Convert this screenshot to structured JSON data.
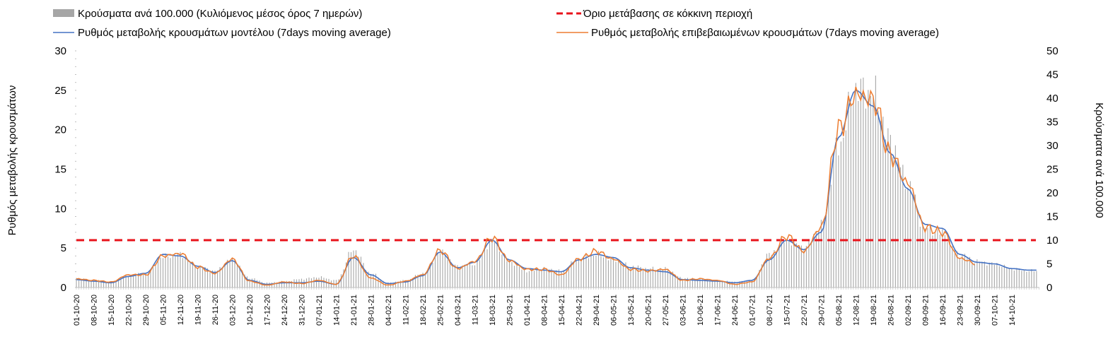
{
  "chart_data": {
    "type": "bar+line",
    "title": "",
    "y_left": {
      "label": "Ρυθμός μεταβολής κρουσμάτων",
      "range": [
        0,
        30
      ],
      "ticks": [
        0,
        5,
        10,
        15,
        20,
        25,
        30
      ]
    },
    "y_right": {
      "label": "Κρούσματα ανά 100.000",
      "range": [
        0,
        50
      ],
      "ticks": [
        0,
        5,
        10,
        15,
        20,
        25,
        30,
        35,
        40,
        45,
        50
      ]
    },
    "x_tick_labels": [
      "01-10-20",
      "08-10-20",
      "15-10-20",
      "22-10-20",
      "29-10-20",
      "05-11-20",
      "12-11-20",
      "19-11-20",
      "26-11-20",
      "03-12-20",
      "10-12-20",
      "17-12-20",
      "24-12-20",
      "31-12-20",
      "07-01-21",
      "14-01-21",
      "21-01-21",
      "28-01-21",
      "04-02-21",
      "11-02-21",
      "18-02-21",
      "25-02-21",
      "04-03-21",
      "11-03-21",
      "18-03-21",
      "25-03-21",
      "01-04-21",
      "08-04-21",
      "15-04-21",
      "22-04-21",
      "29-04-21",
      "06-05-21",
      "13-05-21",
      "20-05-21",
      "27-05-21",
      "03-06-21",
      "10-06-21",
      "17-06-21",
      "24-06-21",
      "01-07-21",
      "08-07-21",
      "15-07-21",
      "22-07-21",
      "29-07-21",
      "05-08-21",
      "12-08-21",
      "19-08-21",
      "26-08-21",
      "02-09-21",
      "09-09-21",
      "16-09-21",
      "23-09-21",
      "30-09-21",
      "07-10-21",
      "14-10-21"
    ],
    "weeks_total": 55.6,
    "threshold": {
      "name": "Όριο μετάβασης σε κόκκινη περιοχή",
      "value": 6,
      "axis": "left",
      "color": "#e8131b"
    },
    "series": [
      {
        "name": "Κρούσματα ανά 100.000 (Κυλιόμενος μέσος όρος 7 ημερών)",
        "kind": "bar",
        "axis": "right",
        "color": "#a6a6a6",
        "weekly_values": [
          2.0,
          1.5,
          1.2,
          2.5,
          3.0,
          6.5,
          7.0,
          4.5,
          3.5,
          6.0,
          2.0,
          1.0,
          1.3,
          1.8,
          2.2,
          1.5,
          8.0,
          3.0,
          1.0,
          1.5,
          3.0,
          7.5,
          4.5,
          5.0,
          10.0,
          5.5,
          3.5,
          4.0,
          3.5,
          6.0,
          7.0,
          6.0,
          4.5,
          4.0,
          4.0,
          2.0,
          1.8,
          1.5,
          1.2,
          1.5,
          7.0,
          10.0,
          8.5,
          13.0,
          30.0,
          42.0,
          41.0,
          31.0,
          22.0,
          12.5,
          11.5,
          7.0,
          5.5,
          5.0,
          4.0,
          3.5
        ]
      },
      {
        "name": "Ρυθμός μεταβολής κρουσμάτων μοντέλου (7days moving average)",
        "kind": "line",
        "axis": "left",
        "color": "#4472c4",
        "weekly_values": [
          1.0,
          0.8,
          0.6,
          1.4,
          1.8,
          4.2,
          4.0,
          2.7,
          1.9,
          3.4,
          0.9,
          0.4,
          0.6,
          0.6,
          0.8,
          0.4,
          3.8,
          1.6,
          0.5,
          0.7,
          1.5,
          4.5,
          2.5,
          3.2,
          6.0,
          3.5,
          2.4,
          2.2,
          2.0,
          3.5,
          4.2,
          3.8,
          2.5,
          2.2,
          2.0,
          1.0,
          0.9,
          0.8,
          0.6,
          0.9,
          3.5,
          6.0,
          4.8,
          7.0,
          19.0,
          25.0,
          23.0,
          17.0,
          12.5,
          8.0,
          7.5,
          4.2,
          3.2,
          3.0,
          2.4,
          2.2
        ]
      },
      {
        "name": "Ρυθμός μεταβολής επιβεβαιωμένων κρουσμάτων (7days moving average)",
        "kind": "line",
        "axis": "left",
        "color": "#ed7d31",
        "weekly_values": [
          1.1,
          0.9,
          0.7,
          1.6,
          1.6,
          4.0,
          4.3,
          2.6,
          1.8,
          3.6,
          0.8,
          0.3,
          0.7,
          0.5,
          0.9,
          0.4,
          4.0,
          1.2,
          0.3,
          0.8,
          1.6,
          4.7,
          2.4,
          3.3,
          6.3,
          3.4,
          2.3,
          2.3,
          1.6,
          3.6,
          4.6,
          3.6,
          2.3,
          2.1,
          2.3,
          0.9,
          1.1,
          0.9,
          0.4,
          0.7,
          3.7,
          6.5,
          4.6,
          7.6,
          20.0,
          24.5,
          23.8,
          16.8,
          13.2,
          7.6,
          7.0,
          3.7,
          3.0,
          null,
          null,
          null
        ]
      }
    ],
    "legend": {
      "placement": "top",
      "items": [
        "Κρούσματα ανά 100.000 (Κυλιόμενος μέσος όρος 7 ημερών)",
        "Όριο μετάβασης σε κόκκινη περιοχή",
        "Ρυθμός μεταβολής κρουσμάτων μοντέλου (7days moving average)",
        "Ρυθμός μεταβολής επιβεβαιωμένων κρουσμάτων (7days moving average)"
      ]
    }
  }
}
